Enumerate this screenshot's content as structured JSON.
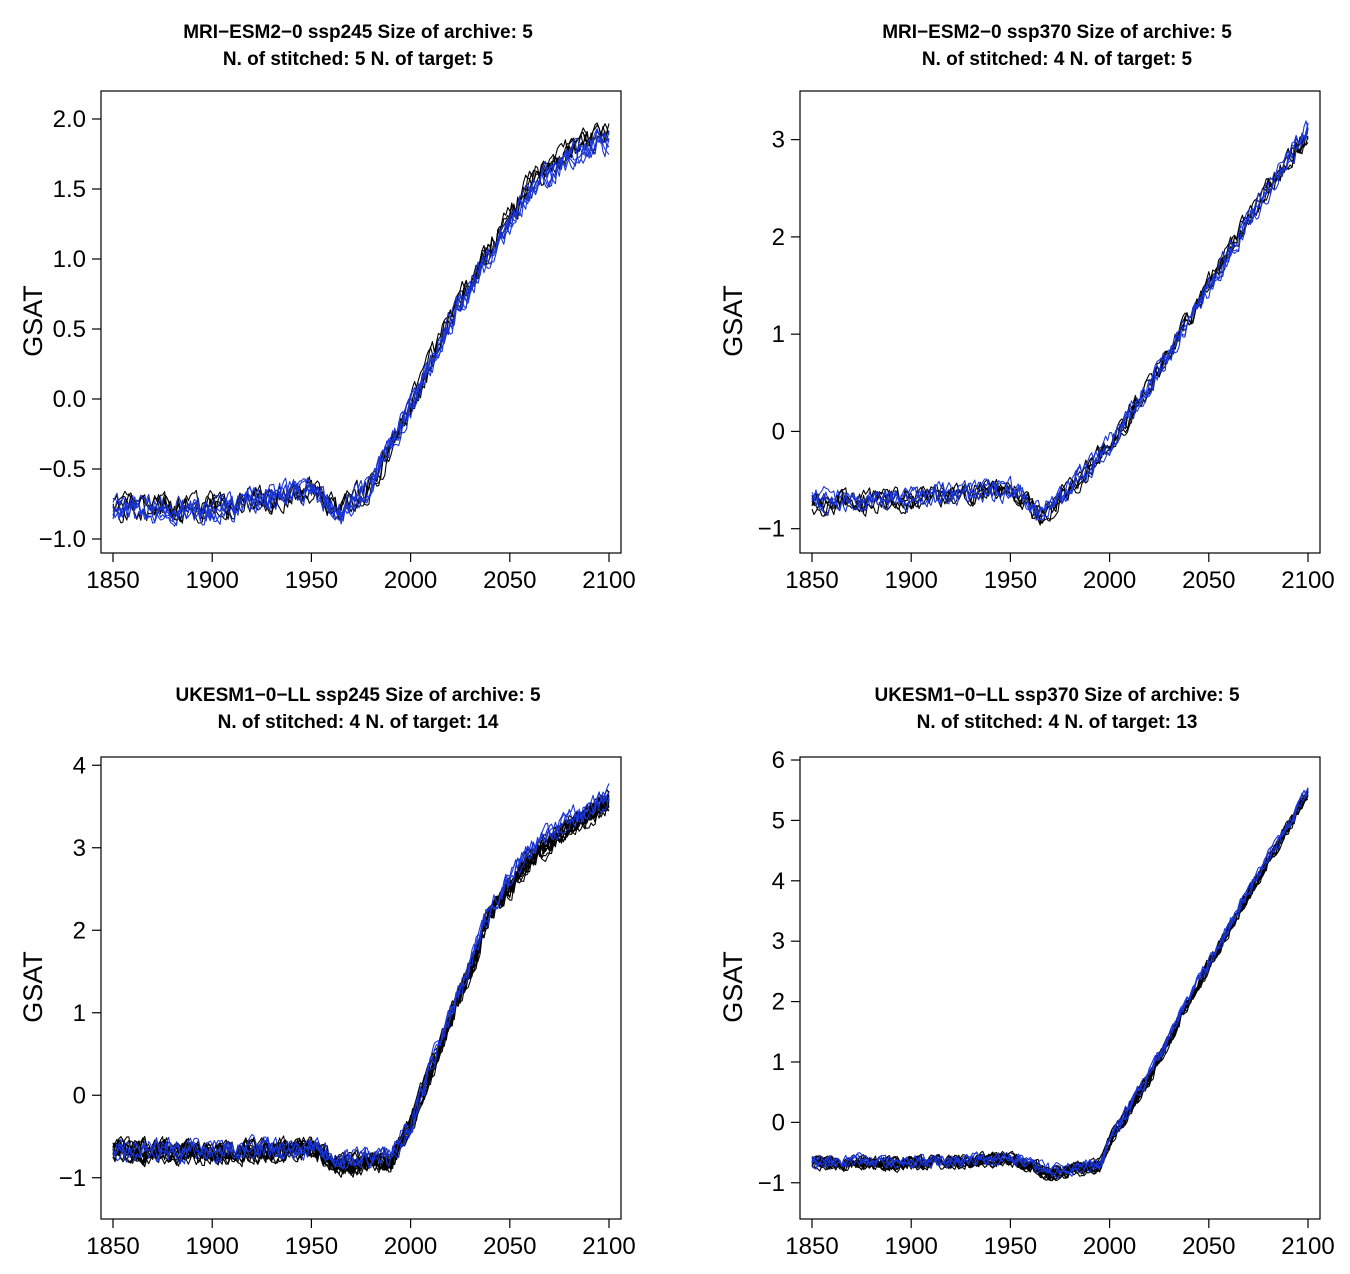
{
  "figure": {
    "description_colors": {
      "target": "#000000",
      "stitched": "#1a35d6"
    },
    "panels": [
      {
        "title_line1": "MRI−ESM2−0 ssp245 Size of archive: 5",
        "title_line2": "N. of stitched: 5 N. of target: 5",
        "ylabel": "GSAT"
      },
      {
        "title_line1": "MRI−ESM2−0 ssp370 Size of archive: 5",
        "title_line2": "N. of stitched: 4 N. of target: 5",
        "ylabel": "GSAT"
      },
      {
        "title_line1": "UKESM1−0−LL ssp245 Size of archive: 5",
        "title_line2": "N. of stitched: 4 N. of target: 14",
        "ylabel": "GSAT"
      },
      {
        "title_line1": "UKESM1−0−LL ssp370 Size of archive: 5",
        "title_line2": "N. of stitched: 4 N. of target: 13",
        "ylabel": "GSAT"
      }
    ]
  },
  "chart_data": [
    {
      "type": "line",
      "title": "MRI−ESM2−0 ssp245 Size of archive: 5 / N. of stitched: 5 N. of target: 5",
      "xlabel": "",
      "ylabel": "GSAT",
      "xlim": [
        1850,
        2100
      ],
      "ylim": [
        -1.1,
        2.2
      ],
      "x_ticks": [
        1850,
        1900,
        1950,
        2000,
        2050,
        2100
      ],
      "y_ticks": [
        -1.0,
        -0.5,
        0.0,
        0.5,
        1.0,
        1.5,
        2.0
      ],
      "y_tick_labels": [
        "−1.0",
        "−0.5",
        "0.0",
        "0.5",
        "1.0",
        "1.5",
        "2.0"
      ],
      "grid": false,
      "n_target": 5,
      "n_stitched": 5,
      "series": [
        {
          "name": "target (black)",
          "color": "#000000",
          "x": [
            1850,
            1900,
            1950,
            1965,
            1980,
            2000,
            2020,
            2040,
            2060,
            2080,
            2100
          ],
          "values": [
            -0.75,
            -0.75,
            -0.65,
            -0.78,
            -0.6,
            -0.05,
            0.6,
            1.1,
            1.55,
            1.8,
            1.92
          ]
        },
        {
          "name": "stitched (blue)",
          "color": "#1a35d6",
          "x": [
            1850,
            1900,
            1950,
            1965,
            1980,
            2000,
            2020,
            2040,
            2060,
            2080,
            2100
          ],
          "values": [
            -0.78,
            -0.78,
            -0.62,
            -0.8,
            -0.6,
            -0.05,
            0.55,
            1.05,
            1.5,
            1.75,
            1.85
          ]
        }
      ],
      "noise": 0.09
    },
    {
      "type": "line",
      "title": "MRI−ESM2−0 ssp370 Size of archive: 5 / N. of stitched: 4 N. of target: 5",
      "xlabel": "",
      "ylabel": "GSAT",
      "xlim": [
        1850,
        2100
      ],
      "ylim": [
        -1.25,
        3.5
      ],
      "x_ticks": [
        1850,
        1900,
        1950,
        2000,
        2050,
        2100
      ],
      "y_ticks": [
        -1,
        0,
        1,
        2,
        3
      ],
      "y_tick_labels": [
        "−1",
        "0",
        "1",
        "2",
        "3"
      ],
      "grid": false,
      "n_target": 5,
      "n_stitched": 4,
      "series": [
        {
          "name": "target (black)",
          "color": "#000000",
          "x": [
            1850,
            1900,
            1950,
            1965,
            1980,
            2000,
            2020,
            2040,
            2060,
            2080,
            2100
          ],
          "values": [
            -0.75,
            -0.72,
            -0.6,
            -0.9,
            -0.6,
            -0.15,
            0.45,
            1.15,
            1.85,
            2.5,
            3.05
          ]
        },
        {
          "name": "stitched (blue)",
          "color": "#1a35d6",
          "x": [
            1850,
            1900,
            1950,
            1965,
            1980,
            2000,
            2020,
            2040,
            2060,
            2080,
            2100
          ],
          "values": [
            -0.72,
            -0.7,
            -0.62,
            -0.85,
            -0.6,
            -0.15,
            0.45,
            1.1,
            1.8,
            2.45,
            3.1
          ]
        }
      ],
      "noise": 0.11
    },
    {
      "type": "line",
      "title": "UKESM1−0−LL ssp245 Size of archive: 5 / N. of stitched: 4 N. of target: 14",
      "xlabel": "",
      "ylabel": "GSAT",
      "xlim": [
        1850,
        2100
      ],
      "ylim": [
        -1.5,
        4.1
      ],
      "x_ticks": [
        1850,
        1900,
        1950,
        2000,
        2050,
        2100
      ],
      "y_ticks": [
        -1,
        0,
        1,
        2,
        3,
        4
      ],
      "y_tick_labels": [
        "−1",
        "0",
        "1",
        "2",
        "3",
        "4"
      ],
      "grid": false,
      "n_target": 14,
      "n_stitched": 4,
      "series": [
        {
          "name": "target (black)",
          "color": "#000000",
          "x": [
            1850,
            1900,
            1950,
            1965,
            1990,
            2000,
            2020,
            2040,
            2060,
            2080,
            2100
          ],
          "values": [
            -0.62,
            -0.65,
            -0.6,
            -0.8,
            -0.75,
            -0.3,
            0.95,
            2.2,
            2.9,
            3.3,
            3.6
          ]
        },
        {
          "name": "stitched (blue)",
          "color": "#1a35d6",
          "x": [
            1850,
            1900,
            1950,
            1965,
            1990,
            2000,
            2020,
            2040,
            2060,
            2080,
            2100
          ],
          "values": [
            -0.62,
            -0.62,
            -0.58,
            -0.75,
            -0.7,
            -0.3,
            1.0,
            2.3,
            3.0,
            3.4,
            3.65
          ]
        }
      ],
      "noise": 0.13
    },
    {
      "type": "line",
      "title": "UKESM1−0−LL ssp370 Size of archive: 5 / N. of stitched: 4 N. of target: 13",
      "xlabel": "",
      "ylabel": "GSAT",
      "xlim": [
        1850,
        2100
      ],
      "ylim": [
        -1.6,
        6.05
      ],
      "x_ticks": [
        1850,
        1900,
        1950,
        2000,
        2050,
        2100
      ],
      "y_ticks": [
        -1,
        0,
        1,
        2,
        3,
        4,
        5,
        6
      ],
      "y_tick_labels": [
        "−1",
        "0",
        "1",
        "2",
        "3",
        "4",
        "5",
        "6"
      ],
      "grid": false,
      "n_target": 13,
      "n_stitched": 4,
      "series": [
        {
          "name": "target (black)",
          "color": "#000000",
          "x": [
            1850,
            1900,
            1950,
            1970,
            1995,
            2000,
            2020,
            2040,
            2060,
            2080,
            2100
          ],
          "values": [
            -0.65,
            -0.68,
            -0.6,
            -0.85,
            -0.7,
            -0.3,
            0.75,
            2.0,
            3.2,
            4.35,
            5.45
          ]
        },
        {
          "name": "stitched (blue)",
          "color": "#1a35d6",
          "x": [
            1850,
            1900,
            1950,
            1970,
            1995,
            2000,
            2020,
            2040,
            2060,
            2080,
            2100
          ],
          "values": [
            -0.62,
            -0.65,
            -0.58,
            -0.8,
            -0.68,
            -0.3,
            0.8,
            2.05,
            3.25,
            4.4,
            5.5
          ]
        }
      ],
      "noise": 0.11
    }
  ]
}
